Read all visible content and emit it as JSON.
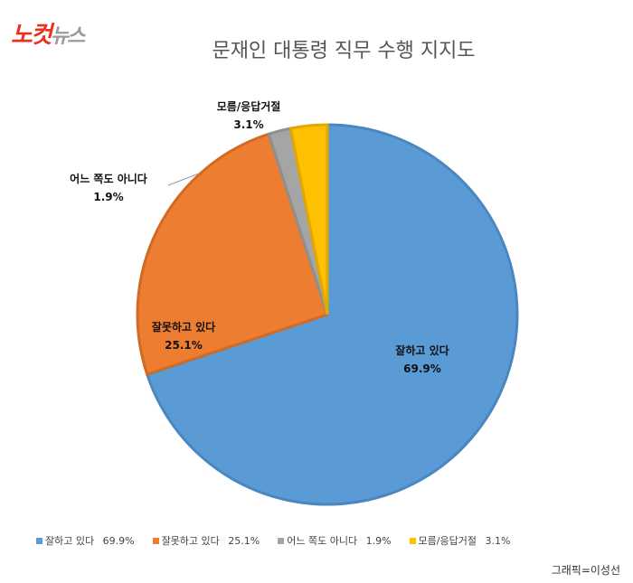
{
  "logo": {
    "part1": "노컷",
    "part2": "뉴스"
  },
  "chart_data": {
    "type": "pie",
    "title": "문재인 대통령 직무 수행 지지도",
    "categories": [
      "잘하고 있다",
      "잘못하고 있다",
      "어느 쪽도 아니다",
      "모름/응답거절"
    ],
    "values": [
      69.9,
      25.1,
      1.9,
      3.1
    ],
    "value_labels": [
      "69.9%",
      "25.1%",
      "1.9%",
      "3.1%"
    ],
    "colors": [
      "#5b9bd5",
      "#ed7d31",
      "#a5a5a5",
      "#ffc000"
    ],
    "border_colors": [
      "#4a86c0",
      "#d26a22",
      "#8f8f8f",
      "#e0a800"
    ],
    "legend_placement": "bottom"
  },
  "credit": "그래픽=이성선"
}
